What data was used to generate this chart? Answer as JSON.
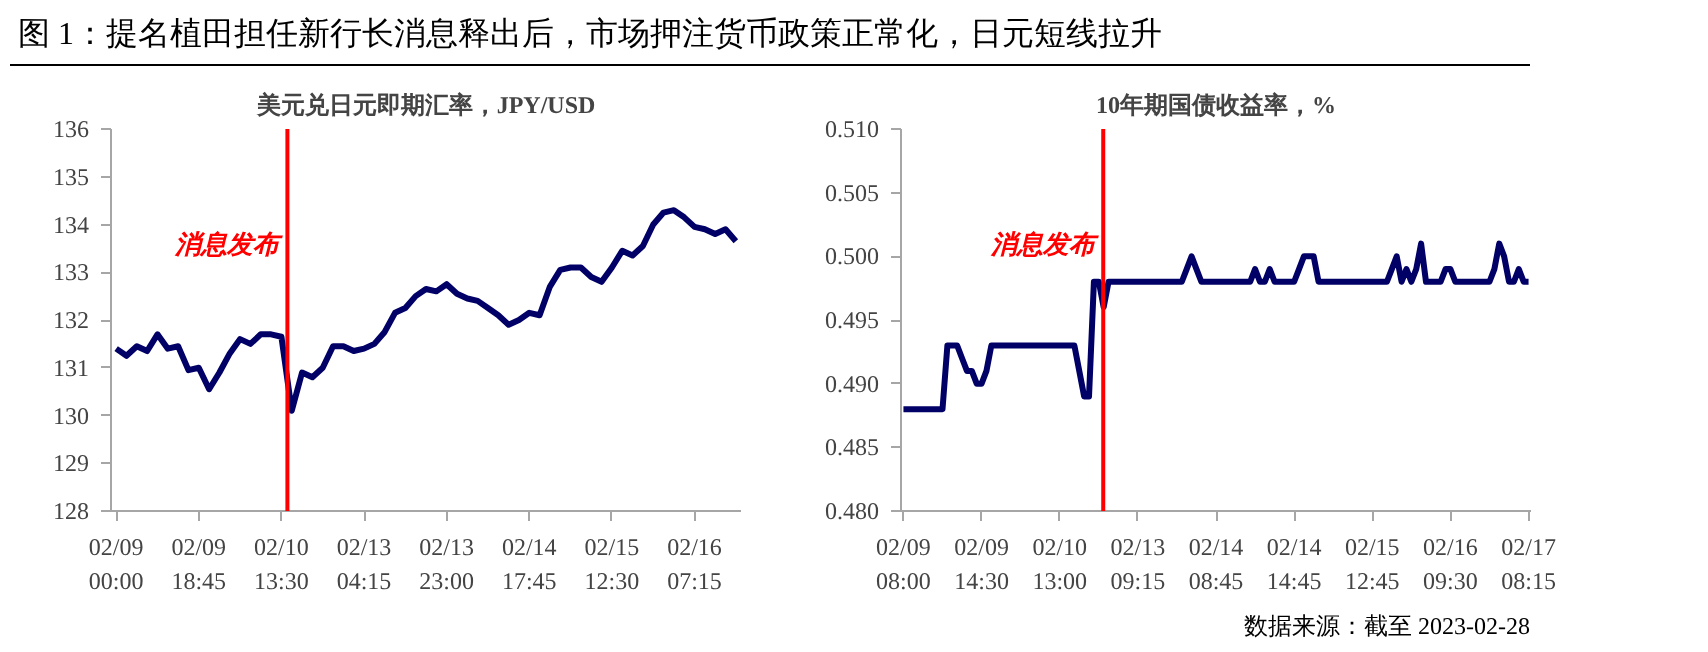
{
  "chart_data": [
    {
      "type": "other",
      "title": "图 1：提名植田担任新行长消息释出后，市场押注货币政策正常化，日元短线拉升",
      "annotations": [
        "数据来源：截至 2023-02-28"
      ]
    },
    {
      "type": "line",
      "title": "美元兑日元即期汇率，JPY/USD",
      "color": "#000066",
      "line_style": "solid",
      "marker": "none",
      "categories": [
        "02/09\n00:00",
        null,
        null,
        null,
        null,
        null,
        null,
        null,
        "02/09\n18:45",
        null,
        null,
        null,
        null,
        null,
        null,
        null,
        "02/10\n13:30",
        null,
        null,
        null,
        null,
        null,
        null,
        null,
        "02/13\n04:15",
        null,
        null,
        null,
        null,
        null,
        null,
        null,
        "02/13\n23:00",
        null,
        null,
        null,
        null,
        null,
        null,
        null,
        "02/14\n17:45",
        null,
        null,
        null,
        null,
        null,
        null,
        null,
        "02/15\n12:30",
        null,
        null,
        null,
        null,
        null,
        null,
        null,
        "02/16\n07:15",
        null,
        null,
        null,
        null
      ],
      "values": [
        131.4,
        131.25,
        131.45,
        131.35,
        131.7,
        131.4,
        131.45,
        130.95,
        131.0,
        130.55,
        130.9,
        131.3,
        131.6,
        131.5,
        131.7,
        131.7,
        131.65,
        130.1,
        130.9,
        130.8,
        131.0,
        131.45,
        131.45,
        131.35,
        131.4,
        131.5,
        131.75,
        132.15,
        132.25,
        132.5,
        132.65,
        132.6,
        132.75,
        132.55,
        132.45,
        132.4,
        132.25,
        132.1,
        131.9,
        132.0,
        132.15,
        132.1,
        132.7,
        133.05,
        133.1,
        133.1,
        132.9,
        132.8,
        133.1,
        133.45,
        133.35,
        133.55,
        134.0,
        134.25,
        134.3,
        134.15,
        133.95,
        133.9,
        133.8,
        133.9,
        133.65
      ],
      "ylim": [
        128,
        136
      ],
      "yticks": [
        128,
        129,
        130,
        131,
        132,
        133,
        134,
        135,
        136
      ],
      "annotations": [
        "消息发布"
      ]
    },
    {
      "type": "line",
      "title": "10年期国债收益率，%",
      "color": "#000066",
      "line_style": "solid",
      "marker": "none",
      "categories": [
        "02/09\n08:00",
        null,
        null,
        null,
        null,
        null,
        null,
        null,
        null,
        null,
        null,
        null,
        null,
        null,
        null,
        null,
        "02/09\n14:30",
        null,
        null,
        null,
        null,
        null,
        null,
        null,
        null,
        null,
        null,
        null,
        null,
        null,
        null,
        null,
        "02/10\n13:00",
        null,
        null,
        null,
        null,
        null,
        null,
        null,
        null,
        null,
        null,
        null,
        null,
        null,
        null,
        null,
        "02/13\n09:15",
        null,
        null,
        null,
        null,
        null,
        null,
        null,
        null,
        null,
        null,
        null,
        null,
        null,
        null,
        null,
        "02/14\n08:45",
        null,
        null,
        null,
        null,
        null,
        null,
        null,
        null,
        null,
        null,
        null,
        null,
        null,
        null,
        null,
        "02/14\n14:45",
        null,
        null,
        null,
        null,
        null,
        null,
        null,
        null,
        null,
        null,
        null,
        null,
        null,
        null,
        null,
        "02/15\n12:45",
        null,
        null,
        null,
        null,
        null,
        null,
        null,
        null,
        null,
        null,
        null,
        null,
        null,
        null,
        null,
        "02/16\n09:30",
        null,
        null,
        null,
        null,
        null,
        null,
        null,
        null,
        null,
        null,
        null,
        null,
        null,
        null,
        null,
        "02/17\n08:15"
      ],
      "values": [
        0.488,
        0.488,
        0.488,
        0.488,
        0.488,
        0.488,
        0.488,
        0.488,
        0.488,
        0.493,
        0.493,
        0.493,
        0.492,
        0.491,
        0.491,
        0.49,
        0.49,
        0.491,
        0.493,
        0.493,
        0.493,
        0.493,
        0.493,
        0.493,
        0.493,
        0.493,
        0.493,
        0.493,
        0.493,
        0.493,
        0.493,
        0.493,
        0.493,
        0.493,
        0.493,
        0.493,
        0.491,
        0.489,
        0.489,
        0.498,
        0.498,
        0.496,
        0.498,
        0.498,
        0.498,
        0.498,
        0.498,
        0.498,
        0.498,
        0.498,
        0.498,
        0.498,
        0.498,
        0.498,
        0.498,
        0.498,
        0.498,
        0.498,
        0.499,
        0.5,
        0.499,
        0.498,
        0.498,
        0.498,
        0.498,
        0.498,
        0.498,
        0.498,
        0.498,
        0.498,
        0.498,
        0.498,
        0.499,
        0.498,
        0.498,
        0.499,
        0.498,
        0.498,
        0.498,
        0.498,
        0.498,
        0.499,
        0.5,
        0.5,
        0.5,
        0.498,
        0.498,
        0.498,
        0.498,
        0.498,
        0.498,
        0.498,
        0.498,
        0.498,
        0.498,
        0.498,
        0.498,
        0.498,
        0.498,
        0.498,
        0.499,
        0.5,
        0.498,
        0.499,
        0.498,
        0.499,
        0.501,
        0.498,
        0.498,
        0.498,
        0.498,
        0.499,
        0.499,
        0.498,
        0.498,
        0.498,
        0.498,
        0.498,
        0.498,
        0.498,
        0.498,
        0.499,
        0.501,
        0.5,
        0.498,
        0.498,
        0.499,
        0.498,
        0.498
      ],
      "ylim": [
        0.48,
        0.51
      ],
      "yticks": [
        {
          "value": 0.48,
          "label": "0.480"
        },
        {
          "value": 0.485,
          "label": "0.485"
        },
        {
          "value": 0.49,
          "label": "0.490"
        },
        {
          "value": 0.495,
          "label": "0.495"
        },
        {
          "value": 0.5,
          "label": "0.500"
        },
        {
          "value": 0.505,
          "label": "0.505"
        },
        {
          "value": 0.51,
          "label": "0.510"
        }
      ],
      "annotations": [
        "消息发布"
      ]
    }
  ]
}
